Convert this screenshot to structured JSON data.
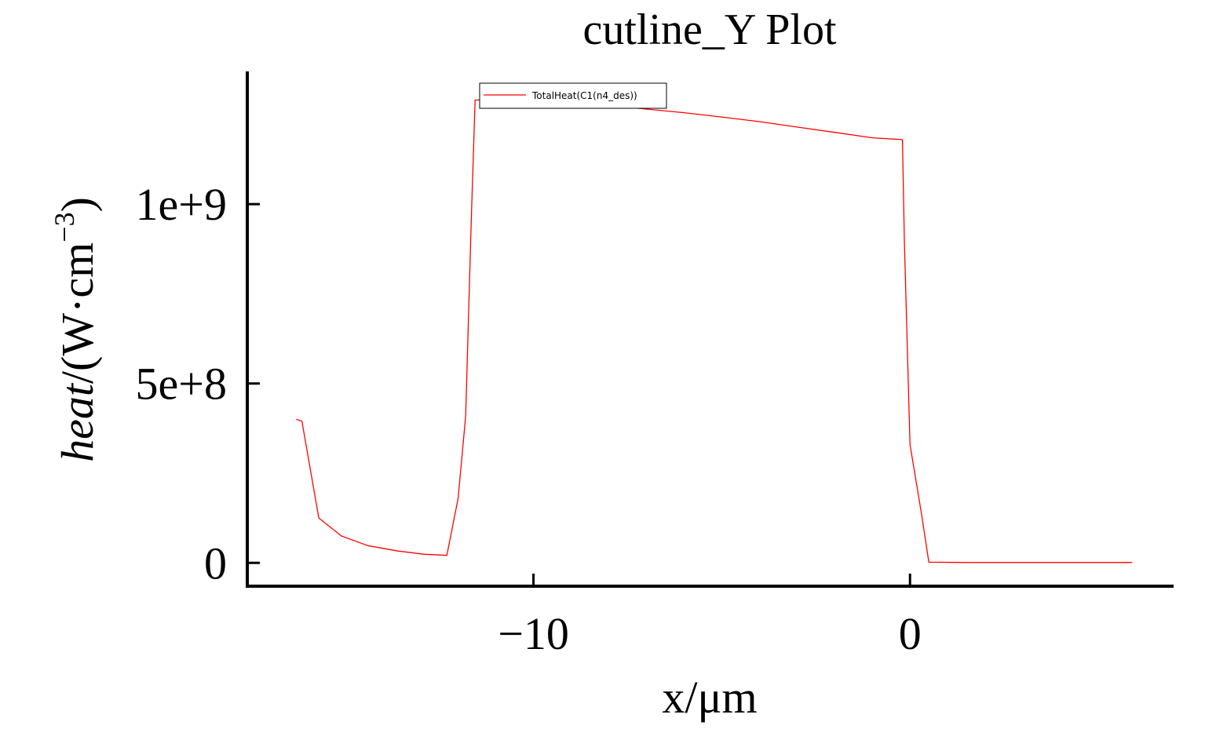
{
  "chart_data": {
    "type": "line",
    "title": "cutline_Y Plot",
    "xlabel": "x/μm",
    "ylabel": {
      "italic": "heat",
      "rest": "/(W·cm",
      "sup": "−3",
      "close": ")"
    },
    "xlim": [
      -17.6,
      7.0
    ],
    "ylim": [
      -65000000.0,
      1370000000.0
    ],
    "x_ticks": [
      {
        "value": -10,
        "label": "−10"
      },
      {
        "value": 0,
        "label": "0"
      }
    ],
    "y_ticks": [
      {
        "value": 0,
        "label": "0"
      },
      {
        "value": 500000000,
        "label": "5e+8"
      },
      {
        "value": 1000000000,
        "label": "1e+9"
      }
    ],
    "grid": false,
    "legend_position": "top-center",
    "series": [
      {
        "name": "TotalHeat(C1(n4_des))",
        "color": "#ff0000",
        "points": [
          [
            -16.3,
            400000000.0
          ],
          [
            -16.15,
            395000000.0
          ],
          [
            -15.7,
            125000000.0
          ],
          [
            -15.1,
            75000000.0
          ],
          [
            -14.4,
            48000000.0
          ],
          [
            -13.6,
            33000000.0
          ],
          [
            -12.9,
            24000000.0
          ],
          [
            -12.3,
            21000000.0
          ],
          [
            -12.0,
            180000000.0
          ],
          [
            -11.8,
            410000000.0
          ],
          [
            -11.65,
            960000000.0
          ],
          [
            -11.55,
            1290000000.0
          ],
          [
            -11.0,
            1293000000.0
          ],
          [
            -10.0,
            1290000000.0
          ],
          [
            -9.0,
            1283000000.0
          ],
          [
            -8.0,
            1275000000.0
          ],
          [
            -7.0,
            1265000000.0
          ],
          [
            -6.0,
            1255000000.0
          ],
          [
            -5.0,
            1243000000.0
          ],
          [
            -4.0,
            1230000000.0
          ],
          [
            -3.0,
            1215000000.0
          ],
          [
            -2.0,
            1200000000.0
          ],
          [
            -1.0,
            1185000000.0
          ],
          [
            -0.2,
            1180000000.0
          ],
          [
            -0.15,
            900000000.0
          ],
          [
            0.0,
            330000000.0
          ],
          [
            0.3,
            140000000.0
          ],
          [
            0.5,
            2000000.0
          ],
          [
            1.5,
            1000000.0
          ],
          [
            3.0,
            1000000.0
          ],
          [
            5.9,
            1000000.0
          ]
        ]
      }
    ]
  }
}
